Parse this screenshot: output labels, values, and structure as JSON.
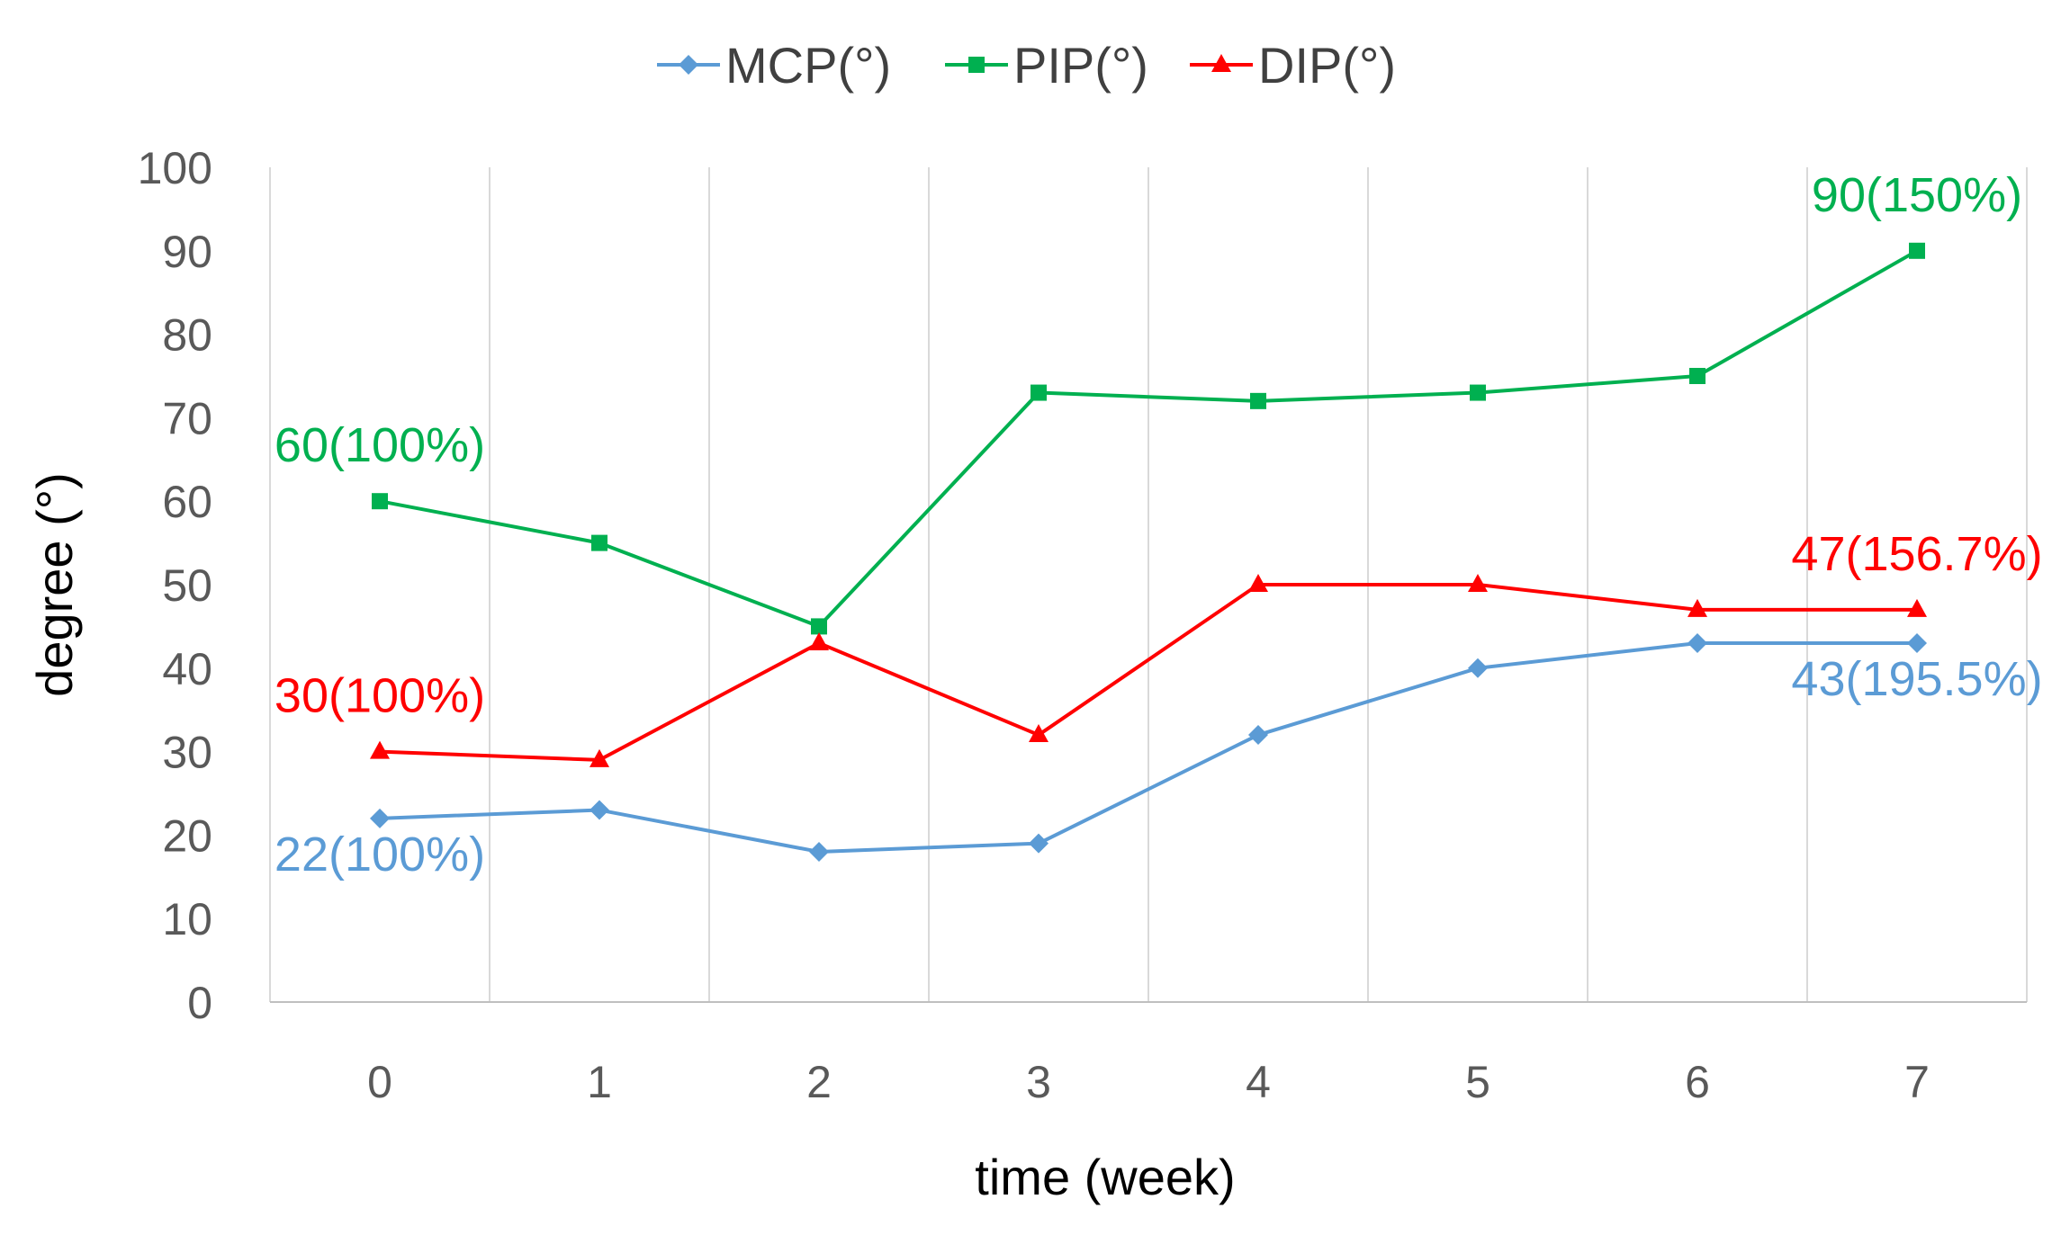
{
  "chart_data": {
    "type": "line",
    "title": "",
    "xlabel": "time (week)",
    "ylabel": "degree (°)",
    "x": [
      0,
      1,
      2,
      3,
      4,
      5,
      6,
      7
    ],
    "xticks": [
      "0",
      "1",
      "2",
      "3",
      "4",
      "5",
      "6",
      "7"
    ],
    "ylim": [
      0,
      100
    ],
    "yticks": [
      "0",
      "10",
      "20",
      "30",
      "40",
      "50",
      "60",
      "70",
      "80",
      "90",
      "100"
    ],
    "grid": "vertical",
    "legend": "top-center",
    "series": [
      {
        "name": "MCP(°)",
        "color": "#5b9bd5",
        "marker": "diamond",
        "values": [
          22,
          23,
          18,
          19,
          32,
          40,
          43,
          43
        ]
      },
      {
        "name": "PIP(°)",
        "color": "#00b050",
        "marker": "square",
        "values": [
          60,
          55,
          45,
          73,
          72,
          73,
          75,
          90
        ]
      },
      {
        "name": "DIP(°)",
        "color": "#ff0000",
        "marker": "triangle",
        "values": [
          30,
          29,
          43,
          32,
          50,
          50,
          47,
          47
        ]
      }
    ],
    "annotations": [
      {
        "series": "PIP(°)",
        "x": 0,
        "y": 60,
        "text": "60(100%)",
        "anchor": "above"
      },
      {
        "series": "DIP(°)",
        "x": 0,
        "y": 30,
        "text": "30(100%)",
        "anchor": "above"
      },
      {
        "series": "MCP(°)",
        "x": 0,
        "y": 22,
        "text": "22(100%)",
        "anchor": "below"
      },
      {
        "series": "PIP(°)",
        "x": 7,
        "y": 90,
        "text": "90(150%)",
        "anchor": "above"
      },
      {
        "series": "DIP(°)",
        "x": 7,
        "y": 47,
        "text": "47(156.7%)",
        "anchor": "above"
      },
      {
        "series": "MCP(°)",
        "x": 7,
        "y": 43,
        "text": "43(195.5%)",
        "anchor": "below"
      }
    ]
  }
}
